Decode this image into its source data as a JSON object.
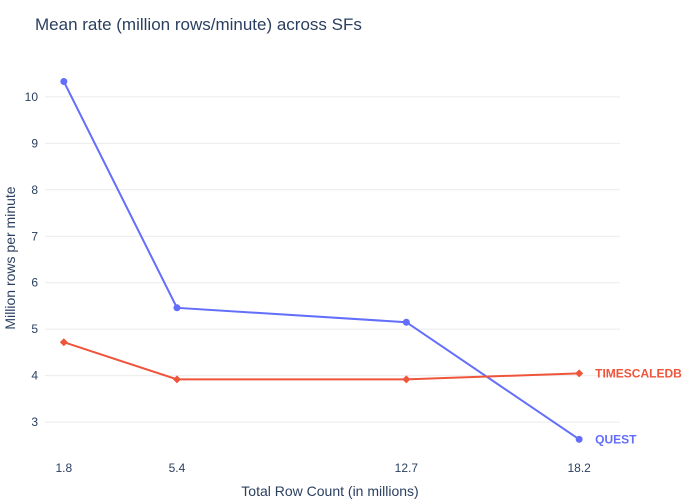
{
  "chart_data": {
    "type": "line",
    "title": "Mean rate (million rows/minute) across SFs",
    "xlabel": "Total Row Count (in millions)",
    "ylabel": "Million rows per minute",
    "x": [
      1.8,
      5.4,
      12.7,
      18.2
    ],
    "x_tick_labels": [
      "1.8",
      "5.4",
      "12.7",
      "18.2"
    ],
    "xlim": [
      1.2,
      19.5
    ],
    "ylim": [
      2.4,
      10.75
    ],
    "y_ticks": [
      3,
      4,
      5,
      6,
      7,
      8,
      9,
      10
    ],
    "grid": true,
    "legend": "none (series labeled at line ends)",
    "series": [
      {
        "name": "QUEST",
        "values": [
          10.33,
          5.46,
          5.15,
          2.63
        ],
        "color": "#636efa",
        "marker": "circle"
      },
      {
        "name": "TIMESCALEDB",
        "values": [
          4.72,
          3.92,
          3.92,
          4.05
        ],
        "color": "#ef553b",
        "marker": "diamond"
      }
    ]
  }
}
